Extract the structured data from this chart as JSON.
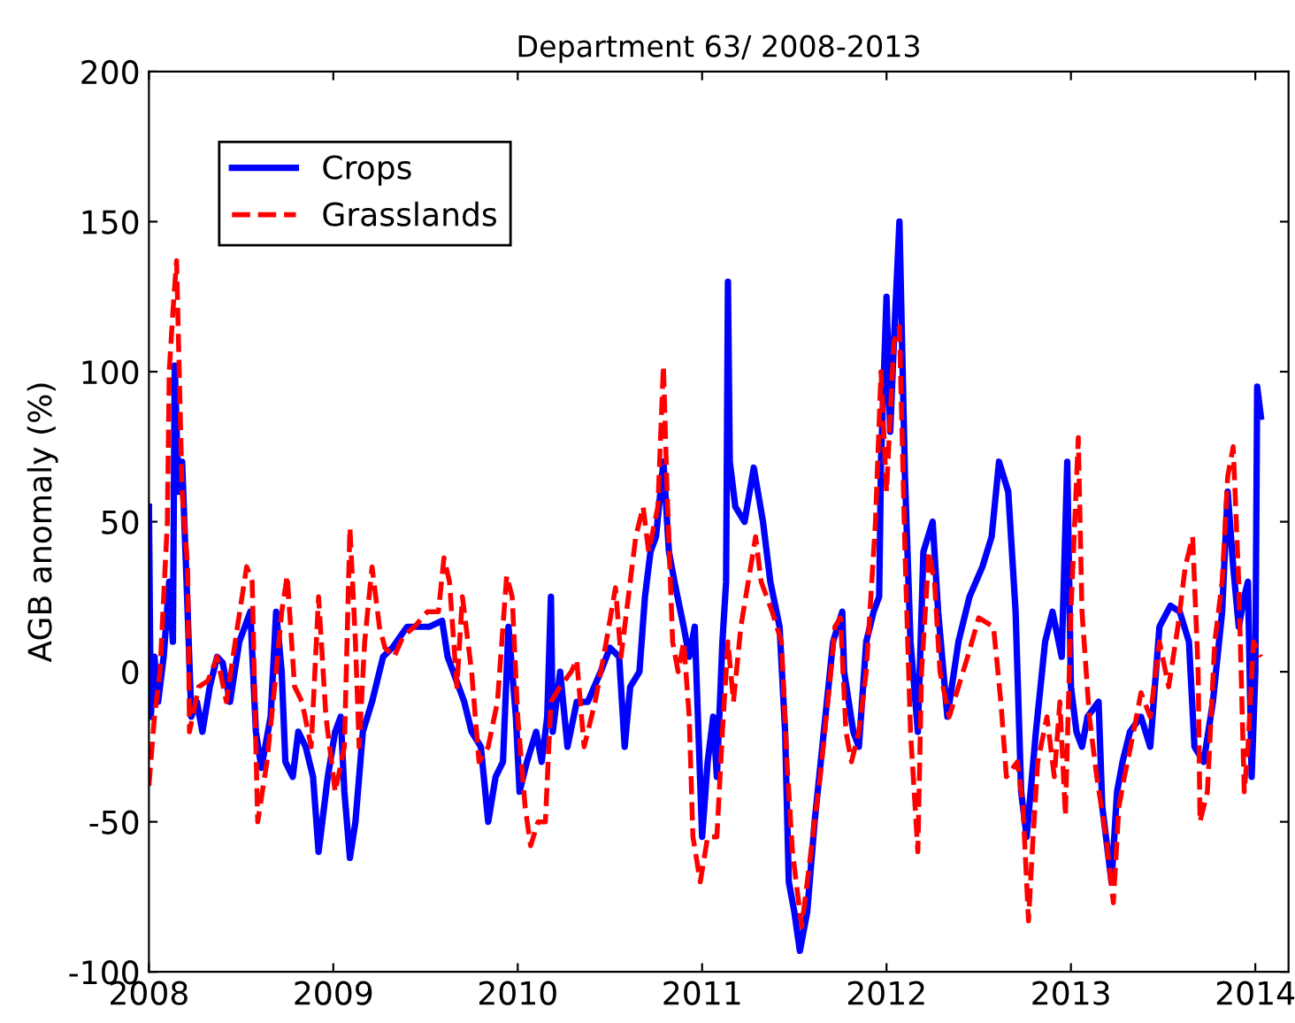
{
  "chart_data": {
    "type": "line",
    "title": "Department 63/ 2008-2013",
    "ylabel": "AGB anomaly (%)",
    "xlim": [
      2008,
      2014.18
    ],
    "xticks": [
      2008,
      2009,
      2010,
      2011,
      2012,
      2013,
      2014
    ],
    "ylim": [
      -100,
      200
    ],
    "yticks": [
      -100,
      -50,
      0,
      50,
      100,
      150,
      200
    ],
    "grid": false,
    "legend": "top left",
    "series": [
      {
        "name": "Crops",
        "color": "#0000ff",
        "line_style": "solid",
        "x": [
          2008.0,
          2008.01,
          2008.03,
          2008.05,
          2008.08,
          2008.11,
          2008.13,
          2008.14,
          2008.16,
          2008.18,
          2008.21,
          2008.23,
          2008.26,
          2008.29,
          2008.33,
          2008.37,
          2008.4,
          2008.44,
          2008.49,
          2008.55,
          2008.58,
          2008.61,
          2008.66,
          2008.69,
          2008.72,
          2008.74,
          2008.78,
          2008.81,
          2008.85,
          2008.89,
          2008.92,
          2008.97,
          2009.01,
          2009.04,
          2009.06,
          2009.09,
          2009.12,
          2009.16,
          2009.21,
          2009.27,
          2009.32,
          2009.4,
          2009.46,
          2009.52,
          2009.59,
          2009.62,
          2009.65,
          2009.71,
          2009.75,
          2009.8,
          2009.84,
          2009.88,
          2009.92,
          2009.95,
          2009.99,
          2010.01,
          2010.05,
          2010.1,
          2010.13,
          2010.16,
          2010.18,
          2010.19,
          2010.23,
          2010.27,
          2010.32,
          2010.38,
          2010.45,
          2010.5,
          2010.55,
          2010.58,
          2010.61,
          2010.66,
          2010.69,
          2010.72,
          2010.75,
          2010.79,
          2010.82,
          2010.85,
          2010.9,
          2010.93,
          2010.96,
          2011.0,
          2011.03,
          2011.06,
          2011.08,
          2011.11,
          2011.13,
          2011.14,
          2011.15,
          2011.18,
          2011.23,
          2011.28,
          2011.33,
          2011.37,
          2011.42,
          2011.45,
          2011.47,
          2011.5,
          2011.53,
          2011.57,
          2011.61,
          2011.66,
          2011.71,
          2011.76,
          2011.77,
          2011.82,
          2011.85,
          2011.89,
          2011.93,
          2011.96,
          2011.97,
          2012.0,
          2012.02,
          2012.04,
          2012.07,
          2012.1,
          2012.13,
          2012.17,
          2012.2,
          2012.25,
          2012.28,
          2012.33,
          2012.39,
          2012.45,
          2012.52,
          2012.57,
          2012.61,
          2012.66,
          2012.7,
          2012.73,
          2012.76,
          2012.81,
          2012.86,
          2012.9,
          2012.95,
          2012.98,
          2013.0,
          2013.03,
          2013.06,
          2013.09,
          2013.15,
          2013.17,
          2013.22,
          2013.25,
          2013.28,
          2013.32,
          2013.38,
          2013.43,
          2013.48,
          2013.54,
          2013.59,
          2013.64,
          2013.67,
          2013.72,
          2013.77,
          2013.82,
          2013.85,
          2013.88,
          2013.91,
          2013.94,
          2013.96,
          2013.98,
          2014.0,
          2014.01,
          2014.03
        ],
        "values": [
          55,
          -15,
          5,
          -10,
          5,
          30,
          10,
          102,
          60,
          70,
          20,
          -15,
          -10,
          -20,
          -5,
          5,
          3,
          -10,
          10,
          20,
          -20,
          -32,
          -15,
          20,
          0,
          -30,
          -35,
          -20,
          -25,
          -35,
          -60,
          -35,
          -20,
          -15,
          -40,
          -62,
          -50,
          -20,
          -10,
          5,
          8,
          15,
          15,
          15,
          17,
          5,
          0,
          -10,
          -20,
          -25,
          -50,
          -35,
          -30,
          15,
          -15,
          -40,
          -30,
          -20,
          -30,
          -15,
          25,
          -20,
          0,
          -25,
          -10,
          -10,
          0,
          8,
          5,
          -25,
          -5,
          0,
          25,
          40,
          45,
          70,
          40,
          30,
          15,
          5,
          15,
          -55,
          -30,
          -15,
          -35,
          10,
          30,
          130,
          70,
          55,
          50,
          68,
          50,
          30,
          15,
          -20,
          -70,
          -80,
          -93,
          -80,
          -50,
          -20,
          10,
          20,
          0,
          -20,
          -25,
          10,
          20,
          25,
          70,
          125,
          80,
          110,
          150,
          65,
          10,
          -20,
          40,
          50,
          20,
          -15,
          10,
          25,
          35,
          45,
          70,
          60,
          20,
          -40,
          -55,
          -20,
          10,
          20,
          5,
          70,
          -5,
          -20,
          -25,
          -15,
          -10,
          -45,
          -70,
          -40,
          -30,
          -20,
          -15,
          -25,
          15,
          22,
          20,
          10,
          -25,
          -30,
          -10,
          20,
          60,
          35,
          15,
          25,
          30,
          -35,
          0,
          95,
          85
        ]
      },
      {
        "name": "Grasslands",
        "color": "#ff0000",
        "line_style": "dashed",
        "x": [
          2008.0,
          2008.03,
          2008.06,
          2008.1,
          2008.11,
          2008.13,
          2008.15,
          2008.18,
          2008.21,
          2008.22,
          2008.27,
          2008.32,
          2008.37,
          2008.42,
          2008.48,
          2008.53,
          2008.56,
          2008.58,
          2008.59,
          2008.64,
          2008.69,
          2008.72,
          2008.75,
          2008.79,
          2008.83,
          2008.88,
          2008.92,
          2008.96,
          2009.01,
          2009.06,
          2009.09,
          2009.12,
          2009.14,
          2009.17,
          2009.21,
          2009.25,
          2009.28,
          2009.33,
          2009.38,
          2009.44,
          2009.51,
          2009.57,
          2009.6,
          2009.63,
          2009.67,
          2009.7,
          2009.75,
          2009.79,
          2009.84,
          2009.89,
          2009.94,
          2009.97,
          2010.0,
          2010.04,
          2010.07,
          2010.11,
          2010.15,
          2010.18,
          2010.23,
          2010.29,
          2010.32,
          2010.36,
          2010.42,
          2010.48,
          2010.53,
          2010.56,
          2010.61,
          2010.64,
          2010.68,
          2010.71,
          2010.76,
          2010.79,
          2010.81,
          2010.84,
          2010.87,
          2010.9,
          2010.93,
          2010.95,
          2010.99,
          2011.03,
          2011.08,
          2011.11,
          2011.14,
          2011.17,
          2011.21,
          2011.25,
          2011.29,
          2011.32,
          2011.38,
          2011.43,
          2011.46,
          2011.49,
          2011.54,
          2011.59,
          2011.64,
          2011.69,
          2011.72,
          2011.75,
          2011.78,
          2011.81,
          2011.85,
          2011.89,
          2011.94,
          2011.97,
          2012.0,
          2012.04,
          2012.07,
          2012.1,
          2012.13,
          2012.17,
          2012.19,
          2012.23,
          2012.26,
          2012.29,
          2012.34,
          2012.39,
          2012.44,
          2012.5,
          2012.58,
          2012.62,
          2012.65,
          2012.71,
          2012.74,
          2012.77,
          2012.79,
          2012.82,
          2012.87,
          2012.91,
          2012.94,
          2012.97,
          2013.0,
          2013.04,
          2013.06,
          2013.1,
          2013.14,
          2013.19,
          2013.23,
          2013.26,
          2013.29,
          2013.34,
          2013.38,
          2013.43,
          2013.48,
          2013.53,
          2013.58,
          2013.62,
          2013.66,
          2013.69,
          2013.7,
          2013.74,
          2013.78,
          2013.82,
          2013.85,
          2013.88,
          2013.91,
          2013.94,
          2013.96,
          2013.99,
          2014.03
        ],
        "values": [
          -38,
          -15,
          0,
          50,
          100,
          120,
          137,
          60,
          35,
          -20,
          -5,
          -3,
          5,
          -10,
          15,
          35,
          30,
          -25,
          -50,
          -30,
          0,
          20,
          32,
          -5,
          -10,
          -25,
          25,
          -15,
          -40,
          -25,
          48,
          10,
          -25,
          10,
          35,
          15,
          8,
          5,
          12,
          15,
          20,
          20,
          38,
          30,
          -5,
          25,
          0,
          -30,
          -25,
          -10,
          32,
          25,
          -15,
          -45,
          -58,
          -50,
          -50,
          -10,
          -5,
          0,
          4,
          -25,
          -10,
          10,
          28,
          5,
          30,
          45,
          55,
          40,
          55,
          102,
          60,
          10,
          0,
          10,
          -15,
          -55,
          -70,
          -55,
          -55,
          -20,
          10,
          -10,
          15,
          30,
          45,
          30,
          20,
          10,
          -30,
          -60,
          -85,
          -60,
          -35,
          -5,
          15,
          18,
          -20,
          -30,
          -20,
          0,
          50,
          100,
          60,
          110,
          115,
          40,
          -20,
          -60,
          0,
          40,
          30,
          0,
          -15,
          -5,
          5,
          18,
          15,
          -10,
          -35,
          -30,
          -45,
          -83,
          -60,
          -30,
          -15,
          -35,
          -10,
          -48,
          20,
          78,
          20,
          -15,
          -35,
          -55,
          -77,
          -45,
          -35,
          -20,
          -7,
          -15,
          10,
          -5,
          15,
          35,
          45,
          0,
          -50,
          -40,
          10,
          30,
          65,
          75,
          30,
          -40,
          -25,
          10,
          5
        ]
      }
    ]
  }
}
